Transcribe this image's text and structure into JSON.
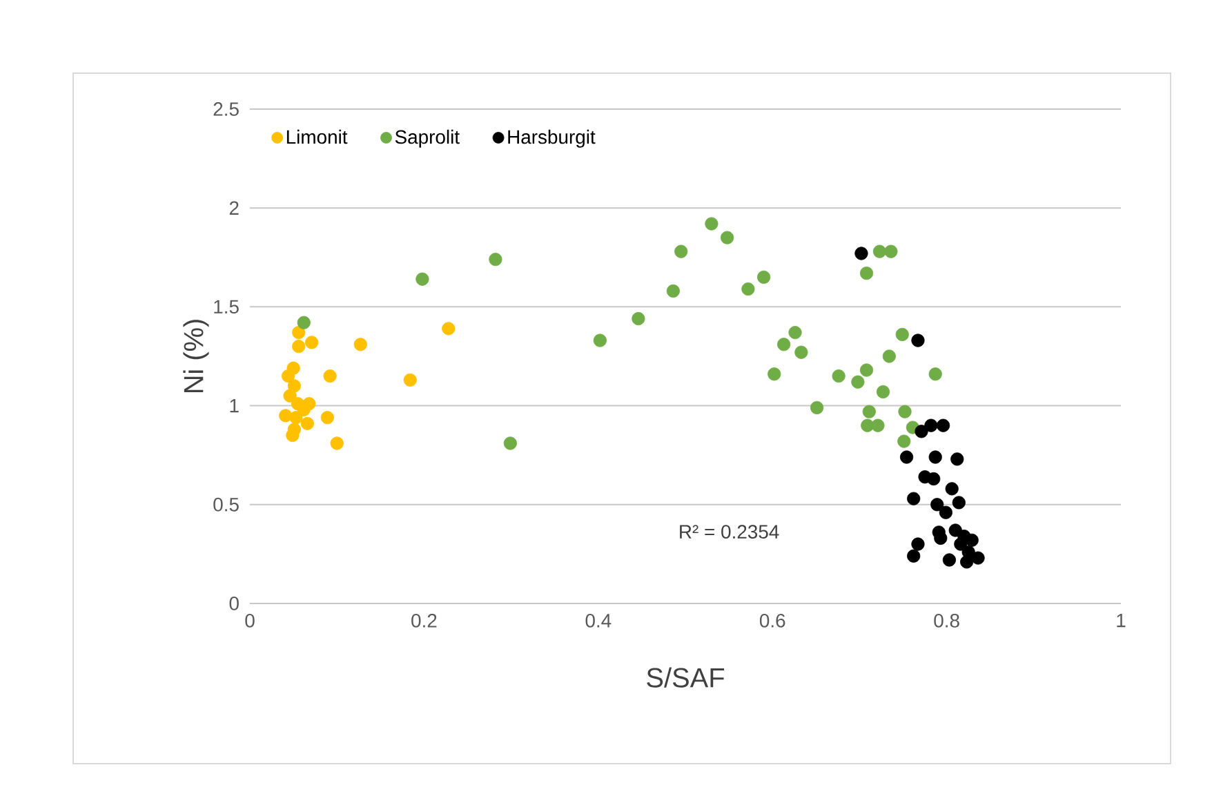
{
  "chart_data": {
    "type": "scatter",
    "xlabel": "S/SAF",
    "ylabel": "Ni (%)",
    "xlim": [
      0,
      1
    ],
    "ylim": [
      0,
      2.5
    ],
    "xticks": [
      0,
      0.2,
      0.4,
      0.6,
      0.8,
      1
    ],
    "yticks": [
      0,
      0.5,
      1,
      1.5,
      2,
      2.5
    ],
    "grid": "y",
    "legend": "top left",
    "annotations": [
      "R² = 0.2354"
    ],
    "series": [
      {
        "name": "Limonit",
        "color": "#ffc000",
        "x": [
          0.056,
          0.056,
          0.071,
          0.127,
          0.228,
          0.184,
          0.092,
          0.05,
          0.044,
          0.051,
          0.046,
          0.055,
          0.068,
          0.041,
          0.053,
          0.066,
          0.089,
          0.049,
          0.051,
          0.1,
          0.062
        ],
        "values": [
          1.37,
          1.3,
          1.32,
          1.31,
          1.39,
          1.13,
          1.15,
          1.19,
          1.15,
          1.1,
          1.05,
          1.01,
          1.01,
          0.95,
          0.94,
          0.91,
          0.94,
          0.85,
          0.88,
          0.81,
          0.98
        ]
      },
      {
        "name": "Saprolit",
        "color": "#70ad47",
        "x": [
          0.062,
          0.198,
          0.282,
          0.299,
          0.402,
          0.446,
          0.486,
          0.495,
          0.53,
          0.548,
          0.572,
          0.59,
          0.602,
          0.613,
          0.626,
          0.633,
          0.651,
          0.676,
          0.698,
          0.708,
          0.708,
          0.723,
          0.736,
          0.734,
          0.727,
          0.711,
          0.709,
          0.721,
          0.749,
          0.752,
          0.751,
          0.787,
          0.761
        ],
        "values": [
          1.42,
          1.64,
          1.74,
          0.81,
          1.33,
          1.44,
          1.58,
          1.78,
          1.92,
          1.85,
          1.59,
          1.65,
          1.16,
          1.31,
          1.37,
          1.27,
          0.99,
          1.15,
          1.12,
          1.18,
          1.67,
          1.78,
          1.78,
          1.25,
          1.07,
          0.97,
          0.9,
          0.9,
          1.36,
          0.97,
          0.82,
          1.16,
          0.89
        ]
      },
      {
        "name": "Harsburgit",
        "color": "#000000",
        "x": [
          0.702,
          0.767,
          0.771,
          0.782,
          0.796,
          0.754,
          0.787,
          0.812,
          0.775,
          0.785,
          0.806,
          0.762,
          0.814,
          0.789,
          0.799,
          0.791,
          0.81,
          0.793,
          0.82,
          0.829,
          0.816,
          0.767,
          0.762,
          0.803,
          0.823,
          0.836,
          0.825
        ],
        "values": [
          1.77,
          1.33,
          0.87,
          0.9,
          0.9,
          0.74,
          0.74,
          0.73,
          0.64,
          0.63,
          0.58,
          0.53,
          0.51,
          0.5,
          0.46,
          0.36,
          0.37,
          0.33,
          0.34,
          0.32,
          0.3,
          0.3,
          0.24,
          0.22,
          0.21,
          0.23,
          0.26
        ]
      }
    ]
  }
}
